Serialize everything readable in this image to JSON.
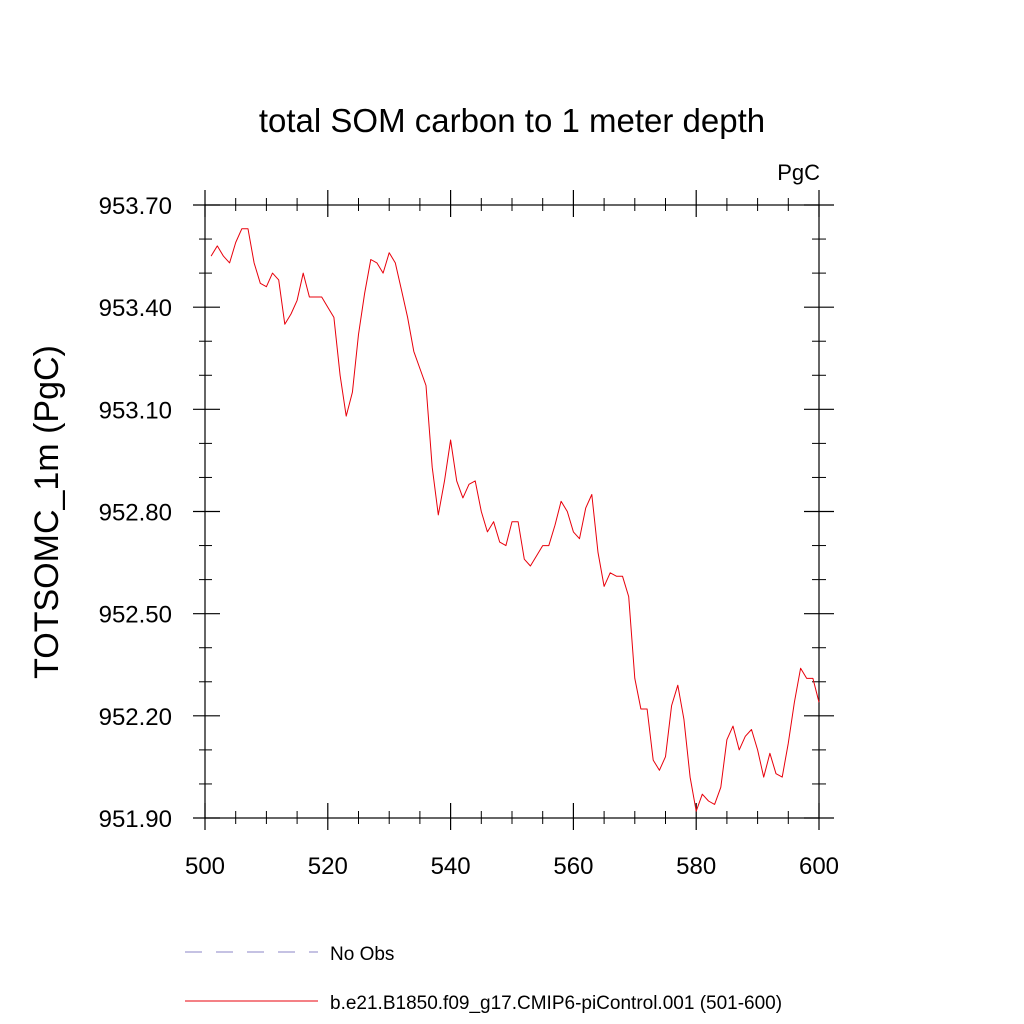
{
  "chart_data": {
    "type": "line",
    "title": "total SOM carbon to 1 meter depth",
    "units_label": "PgC",
    "xlabel": "",
    "ylabel": "TOTSOMC_1m  (PgC)",
    "xlim": [
      500,
      600
    ],
    "ylim": [
      951.9,
      953.7
    ],
    "x_ticks": [
      500,
      520,
      540,
      560,
      580,
      600
    ],
    "x_tick_labels": [
      "500",
      "520",
      "540",
      "560",
      "580",
      "600"
    ],
    "y_ticks": [
      951.9,
      952.2,
      952.5,
      952.8,
      953.1,
      953.4,
      953.7
    ],
    "y_tick_labels": [
      "951.90",
      "952.20",
      "952.50",
      "952.80",
      "953.10",
      "953.40",
      "953.70"
    ],
    "grid": false,
    "legend_position": "bottom",
    "series": [
      {
        "name": "b.e21.B1850.f09_g17.CMIP6-piControl.001 (501-600)",
        "color": "#e8000b",
        "style": "solid",
        "x": [
          501,
          502,
          503,
          504,
          505,
          506,
          507,
          508,
          509,
          510,
          511,
          512,
          513,
          514,
          515,
          516,
          517,
          518,
          519,
          520,
          521,
          522,
          523,
          524,
          525,
          526,
          527,
          528,
          529,
          530,
          531,
          532,
          533,
          534,
          535,
          536,
          537,
          538,
          539,
          540,
          541,
          542,
          543,
          544,
          545,
          546,
          547,
          548,
          549,
          550,
          551,
          552,
          553,
          554,
          555,
          556,
          557,
          558,
          559,
          560,
          561,
          562,
          563,
          564,
          565,
          566,
          567,
          568,
          569,
          570,
          571,
          572,
          573,
          574,
          575,
          576,
          577,
          578,
          579,
          580,
          581,
          582,
          583,
          584,
          585,
          586,
          587,
          588,
          589,
          590,
          591,
          592,
          593,
          594,
          595,
          596,
          597,
          598,
          599,
          600
        ],
        "values": [
          953.55,
          953.58,
          953.55,
          953.53,
          953.59,
          953.63,
          953.63,
          953.53,
          953.47,
          953.46,
          953.5,
          953.48,
          953.35,
          953.38,
          953.42,
          953.5,
          953.43,
          953.43,
          953.43,
          953.4,
          953.37,
          953.2,
          953.08,
          953.15,
          953.32,
          953.44,
          953.54,
          953.53,
          953.5,
          953.56,
          953.53,
          953.45,
          953.37,
          953.27,
          953.22,
          953.17,
          952.93,
          952.79,
          952.89,
          953.01,
          952.89,
          952.84,
          952.88,
          952.89,
          952.8,
          952.74,
          952.77,
          952.71,
          952.7,
          952.77,
          952.77,
          952.66,
          952.64,
          952.67,
          952.7,
          952.7,
          952.76,
          952.83,
          952.8,
          952.74,
          952.72,
          952.81,
          952.85,
          952.68,
          952.58,
          952.62,
          952.61,
          952.61,
          952.55,
          952.31,
          952.22,
          952.22,
          952.07,
          952.04,
          952.08,
          952.23,
          952.29,
          952.19,
          952.02,
          951.92,
          951.97,
          951.95,
          951.94,
          951.99,
          952.13,
          952.17,
          952.1,
          952.14,
          952.16,
          952.1,
          952.02,
          952.09,
          952.03,
          952.02,
          952.12,
          952.24,
          952.34,
          952.31,
          952.31,
          952.24
        ]
      },
      {
        "name": "No Obs",
        "color": "#8b86c7",
        "style": "dashed",
        "x": [],
        "values": []
      }
    ]
  }
}
